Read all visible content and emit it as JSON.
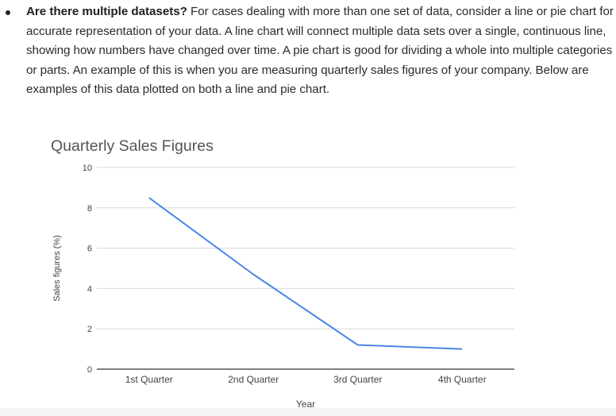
{
  "paragraph": {
    "lead": "Are there multiple datasets?",
    "line1_rest": " For cases dealing with more than one set of data, consider a line or pie chart for",
    "line2": "accurate representation of your data. A line chart will connect multiple data sets over a single, continuous line,",
    "line3": "showing how numbers have changed over time. A pie chart is good for dividing a whole into multiple categories",
    "line4": "or parts. An example of this is when you are measuring quarterly sales figures of your company. Below are",
    "line5": "examples of this data plotted on both a line and pie chart."
  },
  "chart_data": {
    "type": "line",
    "title": "Quarterly Sales Figures",
    "xlabel": "Year",
    "ylabel": "Sales figures (%)",
    "categories": [
      "1st Quarter",
      "2nd Quarter",
      "3rd Quarter",
      "4th Quarter"
    ],
    "series": [
      {
        "values": [
          8.5,
          4.7,
          1.2,
          1.0
        ],
        "color": "#4a86e8"
      }
    ],
    "ylim": [
      0,
      10
    ],
    "yticks": [
      "0",
      "2",
      "4",
      "6",
      "8",
      "10"
    ],
    "grid": true,
    "legend": "none"
  }
}
